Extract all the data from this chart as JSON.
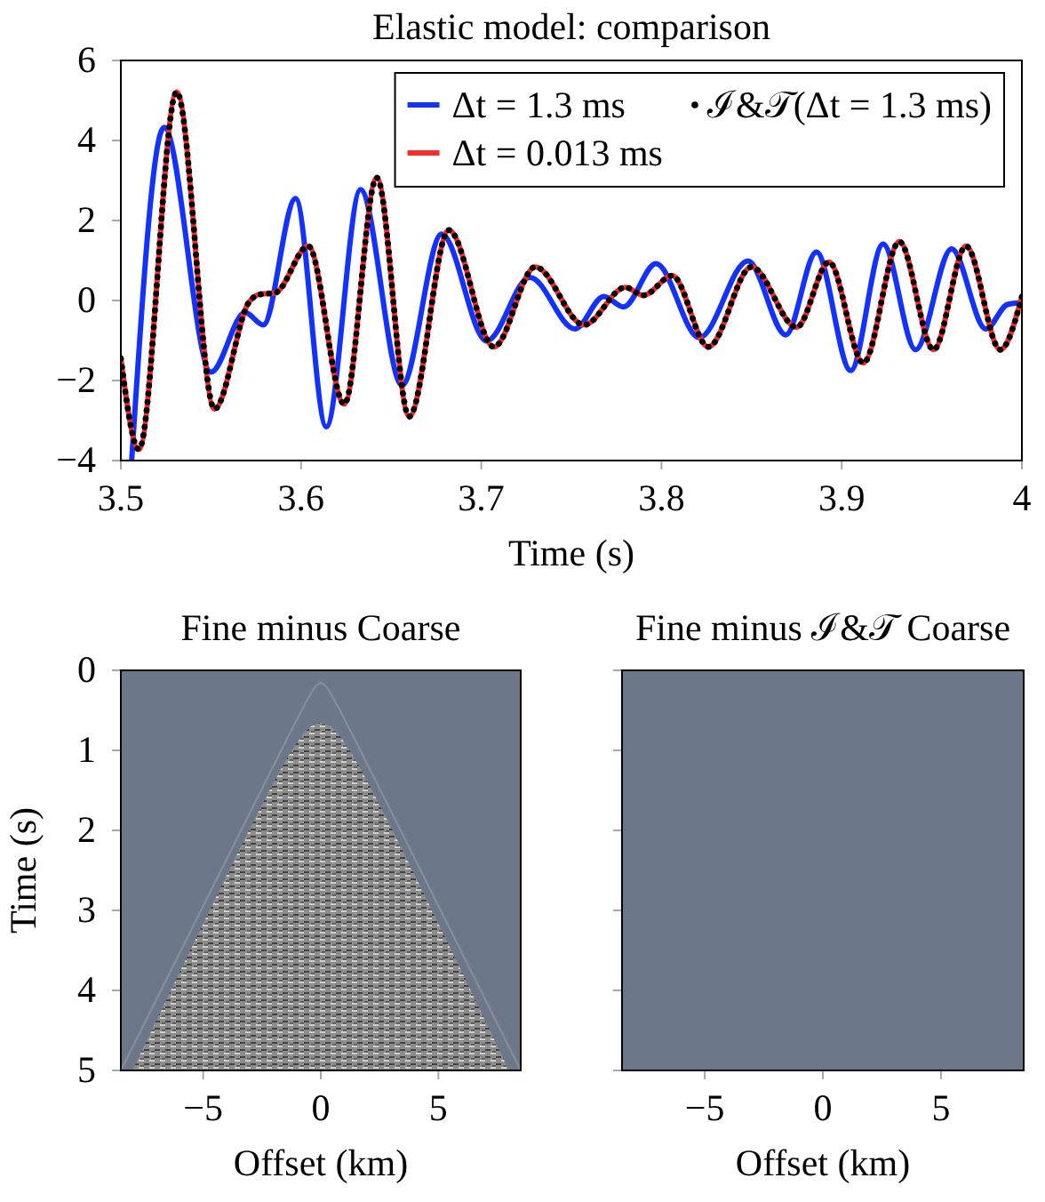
{
  "chart_data": [
    {
      "type": "line",
      "title": "Elastic model: comparison",
      "xlabel": "Time (s)",
      "xlim": [
        3.5,
        4
      ],
      "xticks": [
        3.5,
        3.6,
        3.7,
        3.8,
        3.9,
        4
      ],
      "ylim": [
        -4,
        6
      ],
      "yticks": [
        {
          "value": -4,
          "label": "−4"
        },
        {
          "value": -2,
          "label": "−2"
        },
        0,
        2,
        4,
        6
      ],
      "legend": "top right",
      "series": [
        {
          "name": "Δt = 1.3 ms",
          "color": "#1432ff",
          "x": [
            3.506,
            3.524,
            3.55,
            3.569,
            3.579,
            3.597,
            3.614,
            3.633,
            3.656,
            3.678,
            3.703,
            3.727,
            3.752,
            3.768,
            3.779,
            3.797,
            3.821,
            3.848,
            3.869,
            3.886,
            3.905,
            3.923,
            3.941,
            3.961,
            3.98,
            3.992,
            4.0
          ],
          "values": [
            -4.0,
            4.33,
            -1.79,
            -0.3,
            -0.61,
            2.55,
            -3.16,
            2.77,
            -2.12,
            1.66,
            -1.01,
            0.58,
            -0.71,
            0.1,
            -0.16,
            0.92,
            -0.93,
            0.99,
            -0.86,
            1.21,
            -1.75,
            1.41,
            -1.23,
            1.29,
            -0.71,
            -0.1,
            -0.05
          ]
        },
        {
          "name": "Δt = 0.013 ms",
          "color": "#ff2a2a",
          "x": [
            3.5,
            3.51,
            3.531,
            3.552,
            3.571,
            3.576,
            3.586,
            3.604,
            3.624,
            3.642,
            3.66,
            3.682,
            3.707,
            3.73,
            3.757,
            3.78,
            3.79,
            3.806,
            3.826,
            3.85,
            3.875,
            3.893,
            3.912,
            3.932,
            3.951,
            3.969,
            3.988,
            4.0
          ],
          "values": [
            -1.45,
            -3.72,
            5.21,
            -2.71,
            -0.05,
            0.14,
            0.2,
            1.36,
            -2.59,
            3.07,
            -2.9,
            1.76,
            -1.16,
            0.84,
            -0.61,
            0.33,
            0.13,
            0.62,
            -1.16,
            0.84,
            -0.67,
            0.96,
            -1.56,
            1.47,
            -1.23,
            1.36,
            -1.23,
            0.1
          ]
        },
        {
          "name": "ℐ&𝒯(Δt = 1.3 ms)",
          "color": "#000000",
          "line_style": "dotted",
          "x": [
            3.5,
            3.51,
            3.531,
            3.552,
            3.571,
            3.576,
            3.586,
            3.604,
            3.624,
            3.642,
            3.66,
            3.682,
            3.707,
            3.73,
            3.757,
            3.78,
            3.79,
            3.806,
            3.826,
            3.85,
            3.875,
            3.893,
            3.912,
            3.932,
            3.951,
            3.969,
            3.988,
            4.0
          ],
          "values": [
            -1.45,
            -3.72,
            5.21,
            -2.71,
            -0.05,
            0.14,
            0.2,
            1.36,
            -2.59,
            3.07,
            -2.9,
            1.76,
            -1.16,
            0.84,
            -0.61,
            0.33,
            0.13,
            0.62,
            -1.16,
            0.84,
            -0.67,
            0.96,
            -1.56,
            1.47,
            -1.23,
            1.36,
            -1.23,
            0.1
          ]
        }
      ]
    },
    {
      "type": "scatter",
      "title": "Fine minus Coarse",
      "xlabel": "Offset (km)",
      "ylabel": "Time (s)",
      "xlim": [
        -8.5,
        8.5
      ],
      "xticks": [
        {
          "value": -5,
          "label": "−5"
        },
        0,
        5
      ],
      "ylim": [
        5,
        0
      ],
      "yticks": [
        0,
        1,
        2,
        3,
        4,
        5
      ]
    },
    {
      "type": "scatter",
      "title": "Fine minus ℐ&𝒯 Coarse",
      "xlabel": "Offset (km)",
      "xlim": [
        -8.5,
        8.5
      ],
      "xticks": [
        {
          "value": -5,
          "label": "−5"
        },
        0,
        5
      ],
      "ylim": [
        5,
        0
      ],
      "yticks": [
        0,
        1,
        2,
        3,
        4,
        5
      ],
      "tick_labels": "x"
    }
  ]
}
